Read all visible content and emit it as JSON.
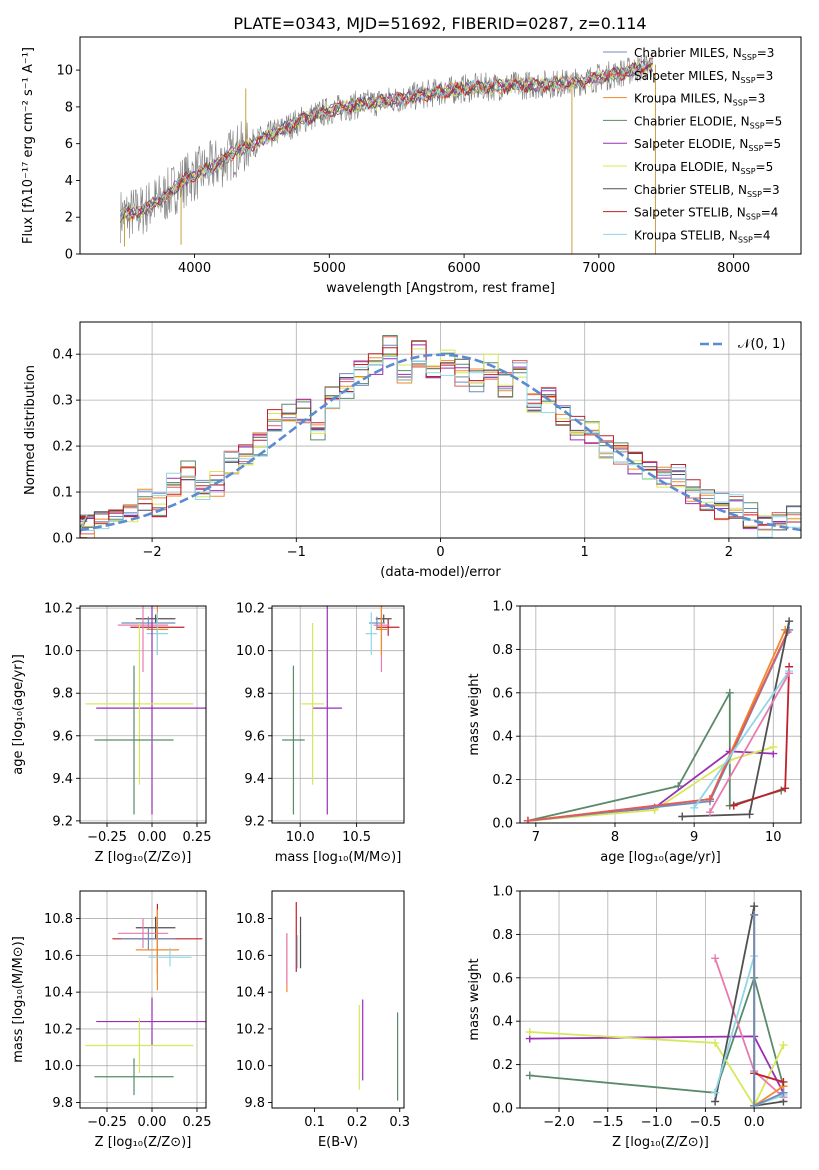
{
  "figure_title": "PLATE=0343, MJD=51692, FIBERID=0287, z=0.114",
  "colors": {
    "Chabrier MILES": "#6c8ebf",
    "Salpeter MILES": "#e45a5a",
    "Kroupa MILES": "#f08a2a",
    "Chabrier ELODIE": "#5a8a6a",
    "Salpeter ELODIE": "#9a2fb5",
    "Kroupa ELODIE": "#d6e85a",
    "Chabrier STELIB": "#505050",
    "Salpeter STELIB": "#c0202a",
    "Kroupa STELIB": "#8fd6e6",
    "Kroupa STELIB pink": "#e87ab0",
    "gaussian": "#5b8bd0",
    "data_gray": "#808080"
  },
  "chart_data": [
    {
      "id": "spectrum",
      "type": "line",
      "title": "PLATE=0343, MJD=51692, FIBERID=0287, z=0.114",
      "xlabel": "wavelength [Angstrom, rest frame]",
      "ylabel": "Flux [fλ10⁻¹⁷ erg cm⁻² s⁻¹ A⁻¹]",
      "xlim": [
        3150,
        8500
      ],
      "ylim": [
        0,
        11.8
      ],
      "xticks": [
        4000,
        5000,
        6000,
        7000,
        8000
      ],
      "yticks": [
        0,
        2,
        4,
        6,
        8,
        10
      ],
      "grid": false,
      "legend": "upper-right",
      "continuum": {
        "x": [
          3450,
          3600,
          3700,
          3800,
          3900,
          4000,
          4100,
          4200,
          4300,
          4400,
          4600,
          4800,
          5000,
          5200,
          5500,
          5800,
          6000,
          6200,
          6500,
          6800,
          7000,
          7200,
          7400
        ],
        "y": [
          2.1,
          2.3,
          2.8,
          3.2,
          3.9,
          4.3,
          4.6,
          5.0,
          5.6,
          5.9,
          6.6,
          7.3,
          7.8,
          8.1,
          8.4,
          8.8,
          9.0,
          9.1,
          9.2,
          9.3,
          9.6,
          9.9,
          10.3
        ]
      },
      "series": [
        {
          "name": "Chabrier MILES, N$_{SSP}$=3",
          "label": "Chabrier MILES, N",
          "sub": "SSP",
          "tail": "=3"
        },
        {
          "name": "Salpeter MILES, N$_{SSP}$=3",
          "label": "Salpeter MILES, N",
          "sub": "SSP",
          "tail": "=3"
        },
        {
          "name": "Kroupa MILES, N$_{SSP}$=3",
          "label": "Kroupa MILES, N",
          "sub": "SSP",
          "tail": "=3"
        },
        {
          "name": "Chabrier ELODIE, N$_{SSP}$=5",
          "label": "Chabrier ELODIE, N",
          "sub": "SSP",
          "tail": "=5"
        },
        {
          "name": "Salpeter ELODIE, N$_{SSP}$=5",
          "label": "Salpeter ELODIE, N",
          "sub": "SSP",
          "tail": "=5"
        },
        {
          "name": "Kroupa ELODIE, N$_{SSP}$=5",
          "label": "Kroupa ELODIE, N",
          "sub": "SSP",
          "tail": "=5"
        },
        {
          "name": "Chabrier STELIB, N$_{SSP}$=3",
          "label": "Chabrier STELIB, N",
          "sub": "SSP",
          "tail": "=3"
        },
        {
          "name": "Salpeter STELIB, N$_{SSP}$=4",
          "label": "Salpeter STELIB, N",
          "sub": "SSP",
          "tail": "=4"
        },
        {
          "name": "Kroupa STELIB, N$_{SSP}$=4",
          "label": "Kroupa STELIB, N",
          "sub": "SSP",
          "tail": "=4"
        }
      ]
    },
    {
      "id": "residual-hist",
      "type": "line",
      "xlabel": "(data-model)/error",
      "ylabel": "Normed distribution",
      "xlim": [
        -2.5,
        2.5
      ],
      "ylim": [
        0,
        0.47
      ],
      "xticks": [
        -2,
        -1,
        0,
        1,
        2
      ],
      "xtick_labels": [
        "−2",
        "−1",
        "0",
        "1",
        "2"
      ],
      "yticks": [
        0.0,
        0.1,
        0.2,
        0.3,
        0.4
      ],
      "ytick_labels": [
        "0.0",
        "0.1",
        "0.2",
        "0.3",
        "0.4"
      ],
      "grid": true,
      "legend": "upper-right",
      "gaussian_label": "𝒩(0, 1)",
      "gaussian": {
        "mean": 0,
        "sigma": 1
      },
      "bin_width": 0.1,
      "histogram_profile": {
        "x": [
          -2.5,
          -2.45,
          -2.35,
          -2.25,
          -2.15,
          -2.05,
          -1.95,
          -1.85,
          -1.75,
          -1.65,
          -1.55,
          -1.45,
          -1.35,
          -1.25,
          -1.15,
          -1.05,
          -0.95,
          -0.85,
          -0.75,
          -0.65,
          -0.55,
          -0.45,
          -0.35,
          -0.25,
          -0.15,
          -0.05,
          0.05,
          0.15,
          0.25,
          0.35,
          0.45,
          0.55,
          0.65,
          0.75,
          0.85,
          0.95,
          1.05,
          1.15,
          1.25,
          1.35,
          1.45,
          1.55,
          1.65,
          1.75,
          1.85,
          1.95,
          2.05,
          2.15,
          2.25,
          2.35,
          2.45
        ],
        "y": [
          0.03,
          0.025,
          0.05,
          0.06,
          0.05,
          0.09,
          0.07,
          0.12,
          0.14,
          0.11,
          0.12,
          0.16,
          0.18,
          0.2,
          0.25,
          0.28,
          0.28,
          0.24,
          0.3,
          0.33,
          0.36,
          0.38,
          0.42,
          0.36,
          0.4,
          0.35,
          0.38,
          0.36,
          0.34,
          0.37,
          0.33,
          0.36,
          0.29,
          0.3,
          0.27,
          0.24,
          0.23,
          0.2,
          0.19,
          0.16,
          0.15,
          0.14,
          0.14,
          0.1,
          0.09,
          0.07,
          0.07,
          0.05,
          0.03,
          0.04,
          0.04
        ]
      }
    },
    {
      "id": "age-vs-Z",
      "type": "scatter",
      "xlabel": "Z [log₁₀(Z/Z⊙)]",
      "ylabel": "age  [log₁₀(age/yr)]",
      "xlim": [
        -0.4,
        0.3
      ],
      "ylim": [
        9.19,
        10.21
      ],
      "xticks": [
        -0.25,
        0.0,
        0.25
      ],
      "xtick_labels": [
        "−0.25",
        "0.00",
        "0.25"
      ],
      "yticks": [
        9.2,
        9.4,
        9.6,
        9.8,
        10.0,
        10.2
      ],
      "ytick_labels": [
        "9.2",
        "9.4",
        "9.6",
        "9.8",
        "10.0",
        "10.2"
      ],
      "grid": true,
      "points": [
        {
          "series": "Chabrier STELIB",
          "x": 0.02,
          "y": 10.15,
          "xerr": 0.11,
          "yerr": 0.02
        },
        {
          "series": "Salpeter STELIB",
          "x": 0.03,
          "y": 10.11,
          "xerr": 0.15,
          "yerr": 0.04
        },
        {
          "series": "Chabrier MILES",
          "x": -0.02,
          "y": 10.13,
          "xerr": 0.15,
          "yerr": 0.03
        },
        {
          "series": "Kroupa STELIB pink",
          "x": -0.05,
          "y": 10.12,
          "xerr": 0.14,
          "yerr": 0.22
        },
        {
          "series": "Kroupa MILES",
          "x": 0.03,
          "y": 10.1,
          "xerr": 0.06,
          "yerr": 0.12
        },
        {
          "series": "Kroupa STELIB",
          "x": 0.03,
          "y": 10.08,
          "xerr": 0.06,
          "yerr": 0.1
        },
        {
          "series": "Salpeter ELODIE",
          "x": 0.0,
          "y": 9.73,
          "xerr": 0.31,
          "yerr": 0.5
        },
        {
          "series": "Kroupa ELODIE",
          "x": -0.07,
          "y": 9.75,
          "xerr": 0.3,
          "yerr": 0.38
        },
        {
          "series": "Chabrier ELODIE",
          "x": -0.1,
          "y": 9.58,
          "xerr": 0.22,
          "yerr": 0.35
        }
      ]
    },
    {
      "id": "age-vs-mass",
      "type": "scatter",
      "xlabel": "mass [log₁₀(M/M⊙)]",
      "ylabel": "",
      "xlim": [
        9.75,
        10.92
      ],
      "ylim": [
        9.19,
        10.21
      ],
      "xticks": [
        10.0,
        10.5
      ],
      "xtick_labels": [
        "10.0",
        "10.5"
      ],
      "yticks": [
        9.2,
        9.4,
        9.6,
        9.8,
        10.0,
        10.2
      ],
      "ytick_labels": [
        "9.2",
        "9.4",
        "9.6",
        "9.8",
        "10.0",
        "10.2"
      ],
      "grid": true,
      "points": [
        {
          "series": "Chabrier STELIB",
          "x": 10.74,
          "y": 10.15,
          "xerr": 0.07,
          "yerr": 0.02
        },
        {
          "series": "Salpeter STELIB",
          "x": 10.78,
          "y": 10.11,
          "xerr": 0.1,
          "yerr": 0.04
        },
        {
          "series": "Chabrier MILES",
          "x": 10.68,
          "y": 10.13,
          "xerr": 0.07,
          "yerr": 0.03
        },
        {
          "series": "Kroupa STELIB pink",
          "x": 10.72,
          "y": 10.12,
          "xerr": 0.07,
          "yerr": 0.22
        },
        {
          "series": "Kroupa MILES",
          "x": 10.72,
          "y": 10.1,
          "xerr": 0.05,
          "yerr": 0.12
        },
        {
          "series": "Kroupa STELIB",
          "x": 10.63,
          "y": 10.08,
          "xerr": 0.05,
          "yerr": 0.1
        },
        {
          "series": "Salpeter ELODIE",
          "x": 10.24,
          "y": 9.73,
          "xerr": 0.13,
          "yerr": 0.5
        },
        {
          "series": "Kroupa ELODIE",
          "x": 10.11,
          "y": 9.75,
          "xerr": 0.1,
          "yerr": 0.38
        },
        {
          "series": "Chabrier ELODIE",
          "x": 9.94,
          "y": 9.58,
          "xerr": 0.1,
          "yerr": 0.35
        }
      ]
    },
    {
      "id": "weight-vs-age",
      "type": "line",
      "xlabel": "age  [log₁₀(age/yr)]",
      "ylabel": "mass weight",
      "xlim": [
        6.8,
        10.35
      ],
      "ylim": [
        0,
        1.0
      ],
      "xticks": [
        7,
        8,
        9,
        10
      ],
      "xtick_labels": [
        "7",
        "8",
        "9",
        "10"
      ],
      "yticks": [
        0.0,
        0.2,
        0.4,
        0.6,
        0.8,
        1.0
      ],
      "ytick_labels": [
        "0.0",
        "0.2",
        "0.4",
        "0.6",
        "0.8",
        "1.0"
      ],
      "grid": true,
      "series": [
        {
          "name": "Chabrier ELODIE",
          "x": [
            6.9,
            8.8,
            9.45,
            9.45,
            10.1
          ],
          "y": [
            0.01,
            0.17,
            0.6,
            0.08,
            0.15
          ]
        },
        {
          "name": "Salpeter ELODIE",
          "x": [
            6.9,
            8.5,
            9.45,
            10.0
          ],
          "y": [
            0.01,
            0.07,
            0.33,
            0.32
          ]
        },
        {
          "name": "Kroupa ELODIE",
          "x": [
            6.9,
            8.5,
            9.45,
            10.0
          ],
          "y": [
            0.01,
            0.06,
            0.29,
            0.35
          ]
        },
        {
          "name": "Kroupa MILES",
          "x": [
            6.9,
            9.2,
            10.15
          ],
          "y": [
            0.01,
            0.11,
            0.89
          ]
        },
        {
          "name": "Chabrier MILES",
          "x": [
            6.9,
            9.2,
            10.2
          ],
          "y": [
            0.01,
            0.1,
            0.89
          ]
        },
        {
          "name": "Salpeter MILES",
          "x": [
            6.9,
            9.2,
            10.18
          ],
          "y": [
            0.01,
            0.11,
            0.88
          ]
        },
        {
          "name": "Chabrier STELIB",
          "x": [
            8.85,
            9.7,
            10.2
          ],
          "y": [
            0.03,
            0.04,
            0.93
          ]
        },
        {
          "name": "Salpeter STELIB",
          "x": [
            9.5,
            10.15,
            10.2
          ],
          "y": [
            0.08,
            0.16,
            0.72
          ]
        },
        {
          "name": "Kroupa STELIB",
          "x": [
            9.0,
            10.2
          ],
          "y": [
            0.07,
            0.7
          ]
        },
        {
          "name": "Kroupa STELIB pink",
          "x": [
            9.2,
            10.2
          ],
          "y": [
            0.05,
            0.69
          ]
        }
      ]
    },
    {
      "id": "mass-vs-Z",
      "type": "scatter",
      "xlabel": "Z [log₁₀(Z/Z⊙)]",
      "ylabel": "mass [log₁₀(M/M⊙)]",
      "xlim": [
        -0.4,
        0.3
      ],
      "ylim": [
        9.77,
        10.95
      ],
      "xticks": [
        -0.25,
        0.0,
        0.25
      ],
      "xtick_labels": [
        "−0.25",
        "0.00",
        "0.25"
      ],
      "yticks": [
        9.8,
        10.0,
        10.2,
        10.4,
        10.6,
        10.8
      ],
      "ytick_labels": [
        "9.8",
        "10.0",
        "10.2",
        "10.4",
        "10.6",
        "10.8"
      ],
      "grid": true,
      "points": [
        {
          "series": "Chabrier STELIB",
          "x": 0.02,
          "y": 10.75,
          "xerr": 0.11,
          "yerr": 0.06
        },
        {
          "series": "Salpeter STELIB",
          "x": 0.03,
          "y": 10.69,
          "xerr": 0.25,
          "yerr": 0.19
        },
        {
          "series": "Kroupa STELIB pink",
          "x": -0.05,
          "y": 10.72,
          "xerr": 0.14,
          "yerr": 0.08
        },
        {
          "series": "Chabrier MILES",
          "x": -0.02,
          "y": 10.69,
          "xerr": 0.15,
          "yerr": 0.06
        },
        {
          "series": "Kroupa MILES",
          "x": 0.03,
          "y": 10.63,
          "xerr": 0.12,
          "yerr": 0.22
        },
        {
          "series": "Kroupa STELIB",
          "x": 0.1,
          "y": 10.59,
          "xerr": 0.12,
          "yerr": 0.05
        },
        {
          "series": "Salpeter ELODIE",
          "x": 0.0,
          "y": 10.24,
          "xerr": 0.31,
          "yerr": 0.13
        },
        {
          "series": "Kroupa ELODIE",
          "x": -0.07,
          "y": 10.11,
          "xerr": 0.3,
          "yerr": 0.15
        },
        {
          "series": "Chabrier ELODIE",
          "x": -0.1,
          "y": 9.94,
          "xerr": 0.22,
          "yerr": 0.1
        }
      ]
    },
    {
      "id": "mass-vs-ebv",
      "type": "scatter",
      "xlabel": "E(B-V)",
      "ylabel": "",
      "xlim": [
        0.0,
        0.31
      ],
      "ylim": [
        9.77,
        10.95
      ],
      "xticks": [
        0.1,
        0.2,
        0.3
      ],
      "xtick_labels": [
        "0.1",
        "0.2",
        "0.3"
      ],
      "yticks": [
        9.8,
        10.0,
        10.2,
        10.4,
        10.6,
        10.8
      ],
      "ytick_labels": [
        "9.8",
        "10.0",
        "10.2",
        "10.4",
        "10.6",
        "10.8"
      ],
      "grid": false,
      "points": [
        {
          "series": "Kroupa MILES",
          "x": 0.035,
          "y": 10.56,
          "xerr": 0,
          "yerr": 0.16
        },
        {
          "series": "Kroupa STELIB pink",
          "x": 0.035,
          "y": 10.58,
          "xerr": 0,
          "yerr": 0.14
        },
        {
          "series": "Salpeter STELIB",
          "x": 0.057,
          "y": 10.7,
          "xerr": 0,
          "yerr": 0.19
        },
        {
          "series": "Kroupa STELIB",
          "x": 0.06,
          "y": 10.62,
          "xerr": 0,
          "yerr": 0.09
        },
        {
          "series": "Chabrier STELIB",
          "x": 0.067,
          "y": 10.67,
          "xerr": 0,
          "yerr": 0.14
        },
        {
          "series": "Kroupa ELODIE",
          "x": 0.205,
          "y": 10.1,
          "xerr": 0,
          "yerr": 0.23
        },
        {
          "series": "Salpeter ELODIE",
          "x": 0.213,
          "y": 10.14,
          "xerr": 0,
          "yerr": 0.22
        },
        {
          "series": "Chabrier ELODIE",
          "x": 0.295,
          "y": 10.05,
          "xerr": 0,
          "yerr": 0.24
        }
      ]
    },
    {
      "id": "weight-vs-Z",
      "type": "line",
      "xlabel": "Z [log₁₀(Z/Z⊙)]",
      "ylabel": "mass weight",
      "xlim": [
        -2.4,
        0.48
      ],
      "ylim": [
        0,
        1.0
      ],
      "xticks": [
        -2.0,
        -1.5,
        -1.0,
        -0.5,
        0.0
      ],
      "xtick_labels": [
        "−2.0",
        "−1.5",
        "−1.0",
        "−0.5",
        "0.0"
      ],
      "yticks": [
        0.0,
        0.2,
        0.4,
        0.6,
        0.8,
        1.0
      ],
      "ytick_labels": [
        "0.0",
        "0.2",
        "0.4",
        "0.6",
        "0.8",
        "1.0"
      ],
      "grid": true,
      "series": [
        {
          "name": "Chabrier ELODIE",
          "x": [
            -2.3,
            -0.4,
            0.0,
            0.3
          ],
          "y": [
            0.15,
            0.07,
            0.6,
            0.1
          ]
        },
        {
          "name": "Salpeter ELODIE",
          "x": [
            -2.3,
            0.0,
            0.3
          ],
          "y": [
            0.32,
            0.33,
            0.07
          ]
        },
        {
          "name": "Kroupa ELODIE",
          "x": [
            -2.3,
            -0.4,
            0.0,
            0.3
          ],
          "y": [
            0.35,
            0.3,
            0.01,
            0.29
          ]
        },
        {
          "name": "Kroupa STELIB pink",
          "x": [
            -0.4,
            0.0,
            0.3
          ],
          "y": [
            0.69,
            0.17,
            0.05
          ]
        },
        {
          "name": "Chabrier STELIB",
          "x": [
            -0.4,
            0.0,
            0.0,
            0.3
          ],
          "y": [
            0.03,
            0.93,
            0.01,
            0.03
          ]
        },
        {
          "name": "Kroupa STELIB",
          "x": [
            -0.4,
            0.0,
            0.0,
            0.3
          ],
          "y": [
            0.07,
            0.7,
            0.01,
            0.06
          ]
        },
        {
          "name": "Kroupa MILES",
          "x": [
            0.0,
            0.0,
            0.3
          ],
          "y": [
            0.89,
            0.01,
            0.1
          ]
        },
        {
          "name": "Salpeter STELIB",
          "x": [
            0.0,
            0.3
          ],
          "y": [
            0.16,
            0.12
          ]
        },
        {
          "name": "Chabrier MILES",
          "x": [
            0.0,
            0.0,
            0.3
          ],
          "y": [
            0.89,
            0.01,
            0.07
          ]
        }
      ]
    }
  ]
}
